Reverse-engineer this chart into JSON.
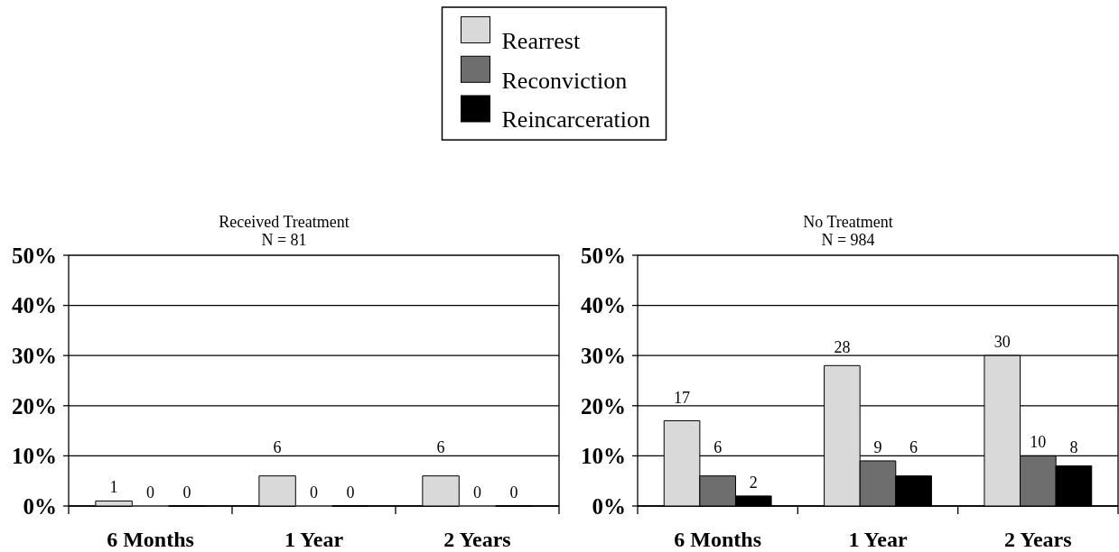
{
  "chart_data": [
    {
      "type": "bar",
      "title": "Received Treatment",
      "subtitle": "N = 81",
      "categories": [
        "6 Months",
        "1 Year",
        "2 Years"
      ],
      "series": [
        {
          "name": "Rearrest",
          "color": "#d9d9d9",
          "values": [
            1,
            6,
            6
          ]
        },
        {
          "name": "Reconviction",
          "color": "#6e6e6e",
          "values": [
            0,
            0,
            0
          ]
        },
        {
          "name": "Reincarceration",
          "color": "#000000",
          "values": [
            0,
            0,
            0
          ]
        }
      ],
      "ylim": [
        0,
        50
      ],
      "yticks": [
        {
          "value": 0,
          "label": "0%"
        },
        {
          "value": 10,
          "label": "10%"
        },
        {
          "value": 20,
          "label": "20%"
        },
        {
          "value": 30,
          "label": "30%"
        },
        {
          "value": 40,
          "label": "40%"
        },
        {
          "value": 50,
          "label": "50%"
        }
      ],
      "grid": "y",
      "legend": "top",
      "data_labels": true
    },
    {
      "type": "bar",
      "title": "No Treatment",
      "subtitle": "N = 984",
      "categories": [
        "6 Months",
        "1 Year",
        "2 Years"
      ],
      "series": [
        {
          "color": "#d9d9d9",
          "values": [
            17,
            28,
            30
          ]
        },
        {
          "color": "#6e6e6e",
          "values": [
            6,
            9,
            10
          ]
        },
        {
          "color": "#000000",
          "values": [
            2,
            6,
            8
          ]
        }
      ],
      "ylim": [
        0,
        50
      ],
      "yticks": [
        {
          "value": 0,
          "label": "0%"
        },
        {
          "value": 10,
          "label": "10%"
        },
        {
          "value": 20,
          "label": "20%"
        },
        {
          "value": 30,
          "label": "30%"
        },
        {
          "value": 40,
          "label": "40%"
        },
        {
          "value": 50,
          "label": "50%"
        }
      ],
      "grid": "y",
      "data_labels": true
    }
  ]
}
